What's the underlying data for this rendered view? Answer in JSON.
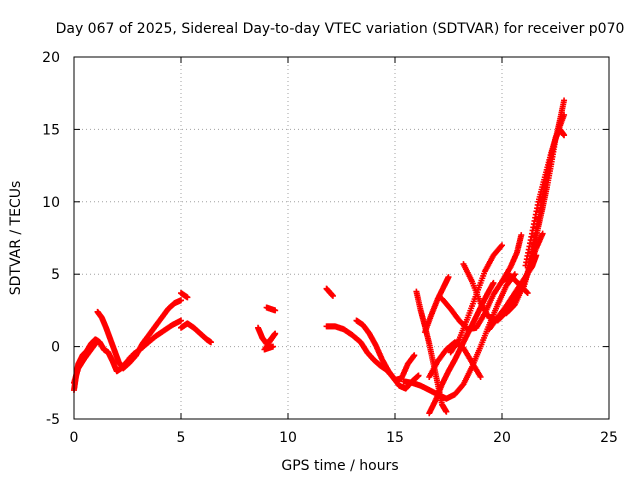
{
  "chart_data": {
    "type": "scatter",
    "title": "Day 067 of 2025, Sidereal Day-to-day VTEC variation (SDTVAR) for receiver p070",
    "xlabel": "GPS time / hours",
    "ylabel": "SDTVAR / TECUs",
    "xlim": [
      0,
      25
    ],
    "ylim": [
      -5,
      20
    ],
    "xticks": [
      "0",
      "5",
      "10",
      "15",
      "20",
      "25"
    ],
    "yticks": [
      "-5",
      "0",
      "5",
      "10",
      "15",
      "20"
    ],
    "grid": true,
    "marker": "plus",
    "colors": {
      "series": "#ff0000",
      "grid": "#a0a0a0",
      "axis": "#000000"
    },
    "series": [
      {
        "values": [
          [
            0.0,
            -3.0
          ],
          [
            0.1,
            -2.0
          ],
          [
            0.2,
            -1.2
          ],
          [
            0.4,
            -0.6
          ],
          [
            0.6,
            -0.3
          ],
          [
            0.8,
            0.2
          ],
          [
            1.0,
            0.5
          ],
          [
            1.2,
            0.3
          ],
          [
            1.4,
            -0.2
          ],
          [
            1.6,
            -0.4
          ],
          [
            1.8,
            -1.0
          ],
          [
            2.0,
            -1.7
          ],
          [
            2.2,
            -1.5
          ],
          [
            2.5,
            -1.0
          ],
          [
            2.8,
            -0.5
          ],
          [
            3.1,
            -0.2
          ]
        ]
      },
      {
        "values": [
          [
            0.0,
            -2.5
          ],
          [
            0.2,
            -1.5
          ],
          [
            0.5,
            -0.8
          ],
          [
            0.8,
            -0.2
          ],
          [
            1.1,
            0.4
          ]
        ]
      },
      {
        "values": [
          [
            1.1,
            2.4
          ],
          [
            1.3,
            2.0
          ],
          [
            1.5,
            1.3
          ],
          [
            1.7,
            0.5
          ],
          [
            1.9,
            -0.3
          ],
          [
            2.1,
            -1.1
          ],
          [
            2.3,
            -1.5
          ],
          [
            2.6,
            -1.1
          ],
          [
            2.9,
            -0.6
          ]
        ]
      },
      {
        "values": [
          [
            2.9,
            -0.6
          ],
          [
            3.2,
            0.2
          ],
          [
            3.5,
            0.8
          ],
          [
            3.8,
            1.4
          ],
          [
            4.1,
            2.0
          ],
          [
            4.4,
            2.6
          ],
          [
            4.7,
            3.0
          ],
          [
            5.0,
            3.2
          ]
        ]
      },
      {
        "values": [
          [
            2.6,
            -0.8
          ],
          [
            3.0,
            -0.3
          ],
          [
            3.4,
            0.2
          ],
          [
            3.8,
            0.7
          ],
          [
            4.2,
            1.1
          ],
          [
            4.6,
            1.5
          ],
          [
            5.0,
            1.8
          ]
        ]
      },
      {
        "values": [
          [
            5.0,
            1.3
          ],
          [
            5.3,
            1.6
          ],
          [
            5.6,
            1.3
          ],
          [
            5.9,
            0.9
          ],
          [
            6.2,
            0.5
          ],
          [
            6.4,
            0.3
          ]
        ]
      },
      {
        "values": [
          [
            5.0,
            3.7
          ],
          [
            5.3,
            3.4
          ]
        ]
      },
      {
        "values": [
          [
            8.6,
            1.3
          ],
          [
            8.8,
            0.6
          ],
          [
            9.0,
            0.2
          ],
          [
            9.2,
            0.5
          ],
          [
            9.4,
            0.9
          ],
          [
            8.9,
            -0.2
          ],
          [
            9.3,
            0.0
          ]
        ]
      },
      {
        "values": [
          [
            9.0,
            2.7
          ],
          [
            9.4,
            2.5
          ]
        ]
      },
      {
        "values": [
          [
            11.8,
            4.0
          ],
          [
            12.1,
            3.5
          ]
        ]
      },
      {
        "values": [
          [
            11.8,
            1.4
          ],
          [
            12.2,
            1.4
          ],
          [
            12.6,
            1.2
          ],
          [
            13.0,
            0.8
          ],
          [
            13.4,
            0.3
          ],
          [
            13.7,
            -0.4
          ],
          [
            14.0,
            -0.9
          ],
          [
            14.3,
            -1.3
          ],
          [
            14.6,
            -1.6
          ],
          [
            14.9,
            -2.1
          ],
          [
            15.2,
            -2.7
          ],
          [
            15.5,
            -2.9
          ],
          [
            15.8,
            -2.4
          ],
          [
            16.1,
            -2.0
          ]
        ]
      },
      {
        "values": [
          [
            13.2,
            1.8
          ],
          [
            13.5,
            1.5
          ],
          [
            13.8,
            0.9
          ],
          [
            14.1,
            0.1
          ],
          [
            14.4,
            -0.9
          ],
          [
            14.7,
            -1.7
          ],
          [
            15.0,
            -2.3
          ],
          [
            15.3,
            -2.2
          ],
          [
            15.6,
            -1.2
          ],
          [
            15.9,
            -0.6
          ]
        ]
      },
      {
        "values": [
          [
            16.0,
            3.8
          ],
          [
            16.2,
            2.5
          ],
          [
            16.4,
            1.4
          ],
          [
            16.6,
            0.2
          ],
          [
            16.8,
            -1.2
          ],
          [
            17.0,
            -2.6
          ],
          [
            17.2,
            -4.0
          ],
          [
            17.4,
            -4.5
          ]
        ]
      },
      {
        "values": [
          [
            16.6,
            -4.6
          ],
          [
            16.9,
            -3.7
          ],
          [
            17.2,
            -2.6
          ],
          [
            17.5,
            -1.7
          ],
          [
            17.8,
            -0.9
          ],
          [
            18.1,
            0.0
          ],
          [
            18.4,
            0.9
          ],
          [
            18.7,
            1.8
          ],
          [
            19.0,
            2.7
          ],
          [
            19.3,
            3.6
          ],
          [
            19.6,
            4.4
          ]
        ]
      },
      {
        "values": [
          [
            16.4,
            1.0
          ],
          [
            16.7,
            2.2
          ],
          [
            17.0,
            3.3
          ],
          [
            17.3,
            4.2
          ],
          [
            17.5,
            4.8
          ]
        ]
      },
      {
        "values": [
          [
            15.4,
            -2.4
          ],
          [
            15.8,
            -2.5
          ],
          [
            16.2,
            -2.7
          ],
          [
            16.6,
            -3.0
          ],
          [
            17.0,
            -3.3
          ],
          [
            17.4,
            -3.6
          ],
          [
            17.8,
            -3.3
          ],
          [
            18.2,
            -2.6
          ],
          [
            18.6,
            -1.4
          ],
          [
            19.0,
            0.0
          ],
          [
            19.4,
            1.5
          ],
          [
            19.8,
            2.9
          ],
          [
            20.2,
            4.2
          ],
          [
            20.6,
            5.0
          ]
        ]
      },
      {
        "values": [
          [
            17.2,
            3.3
          ],
          [
            17.6,
            2.6
          ],
          [
            18.0,
            1.8
          ],
          [
            18.4,
            1.2
          ],
          [
            18.8,
            1.3
          ],
          [
            19.2,
            2.3
          ],
          [
            19.6,
            3.6
          ],
          [
            20.0,
            4.5
          ],
          [
            20.4,
            4.9
          ],
          [
            20.8,
            4.3
          ],
          [
            21.2,
            3.7
          ]
        ]
      },
      {
        "values": [
          [
            17.6,
            -0.4
          ],
          [
            18.0,
            0.5
          ],
          [
            18.4,
            2.0
          ],
          [
            18.8,
            3.6
          ],
          [
            19.2,
            5.2
          ],
          [
            19.6,
            6.3
          ],
          [
            20.0,
            7.0
          ]
        ]
      },
      {
        "values": [
          [
            16.6,
            -2.1
          ],
          [
            17.0,
            -1.0
          ],
          [
            17.4,
            -0.2
          ],
          [
            17.8,
            0.3
          ],
          [
            18.2,
            -0.1
          ],
          [
            18.6,
            -1.1
          ],
          [
            19.0,
            -2.1
          ]
        ]
      },
      {
        "values": [
          [
            18.2,
            5.7
          ],
          [
            18.6,
            4.5
          ],
          [
            19.0,
            3.0
          ],
          [
            19.4,
            2.0
          ],
          [
            19.8,
            1.8
          ],
          [
            20.2,
            2.4
          ],
          [
            20.6,
            3.4
          ],
          [
            21.0,
            4.3
          ]
        ]
      },
      {
        "values": [
          [
            19.4,
            1.2
          ],
          [
            19.8,
            2.0
          ],
          [
            20.2,
            2.8
          ],
          [
            20.6,
            3.7
          ],
          [
            21.0,
            4.6
          ],
          [
            21.4,
            5.5
          ],
          [
            21.6,
            6.3
          ]
        ]
      },
      {
        "values": [
          [
            20.0,
            4.5
          ],
          [
            20.4,
            5.5
          ],
          [
            20.7,
            6.5
          ],
          [
            20.9,
            7.7
          ]
        ]
      },
      {
        "values": [
          [
            20.6,
            3.3
          ],
          [
            21.0,
            4.3
          ],
          [
            21.3,
            5.5
          ],
          [
            21.5,
            6.8
          ],
          [
            21.7,
            8.3
          ],
          [
            21.9,
            9.6
          ],
          [
            22.1,
            11.0
          ],
          [
            22.3,
            12.6
          ],
          [
            22.5,
            14.3
          ],
          [
            22.7,
            15.6
          ],
          [
            22.9,
            17.0
          ]
        ]
      },
      {
        "values": [
          [
            21.0,
            4.0
          ],
          [
            21.3,
            5.6
          ],
          [
            21.5,
            7.2
          ],
          [
            21.7,
            8.8
          ],
          [
            21.9,
            10.4
          ],
          [
            22.1,
            11.8
          ],
          [
            22.3,
            13.2
          ],
          [
            22.5,
            14.4
          ],
          [
            22.7,
            15.0
          ],
          [
            22.9,
            14.6
          ]
        ]
      },
      {
        "values": [
          [
            21.1,
            5.6
          ],
          [
            21.4,
            7.8
          ],
          [
            21.7,
            10.0
          ],
          [
            22.0,
            11.7
          ],
          [
            22.3,
            13.4
          ],
          [
            22.6,
            14.8
          ],
          [
            22.9,
            16.0
          ]
        ]
      },
      {
        "values": [
          [
            20.2,
            2.3
          ],
          [
            20.6,
            2.9
          ],
          [
            21.0,
            4.2
          ],
          [
            21.3,
            5.6
          ],
          [
            21.6,
            6.8
          ],
          [
            21.9,
            7.8
          ]
        ]
      }
    ]
  }
}
